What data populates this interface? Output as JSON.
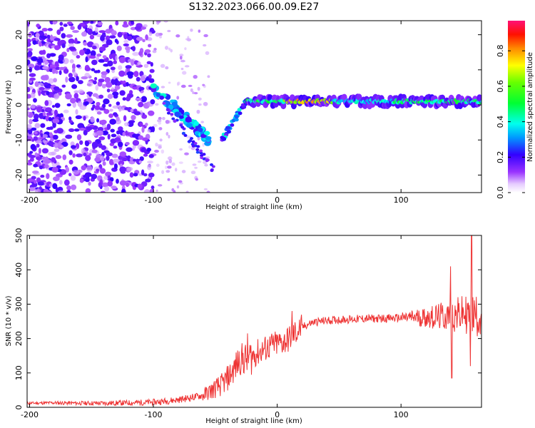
{
  "chart_data": [
    {
      "type": "heatmap",
      "title": "S132.2023.066.00.09.E27",
      "xlabel": "Height of straight line (km)",
      "ylabel": "Frequency (Hz)",
      "xlim": [
        -202,
        165
      ],
      "ylim": [
        -25,
        24
      ],
      "x_ticks": [
        -200,
        -100,
        0,
        100
      ],
      "y_ticks": [
        20,
        10,
        0,
        -10,
        -20
      ],
      "colorbar": {
        "label": "Normalized spectral amplitude",
        "range": [
          0,
          0.97
        ],
        "ticks": [
          "0.0",
          "0.2",
          "0.4",
          "0.6",
          "0.8"
        ],
        "colormap": "gist_ncar-like (white-violet-blue-cyan-green-yellow-red-pink)"
      },
      "features": [
        {
          "x": [
            -202,
            -100
          ],
          "y": [
            -25,
            24
          ],
          "description": "scattered noise, amplitude ~0.1-0.2"
        },
        {
          "x": [
            -100,
            -60
          ],
          "y": [
            5,
            -10
          ],
          "description": "descending track, amplitude ~0.3-0.45"
        },
        {
          "x": [
            -45,
            -30
          ],
          "y": [
            -10,
            0
          ],
          "description": "rising track"
        },
        {
          "x": [
            -25,
            165
          ],
          "y": [
            1,
            1
          ],
          "description": "steady band near 1 Hz, amplitude ~0.5-0.9"
        }
      ]
    },
    {
      "type": "line",
      "xlabel": "Height of straight line (km)",
      "ylabel": "SNR (10 * v/v)",
      "xlim": [
        -202,
        165
      ],
      "ylim": [
        0,
        500
      ],
      "x_ticks": [
        -200,
        -100,
        0,
        100
      ],
      "y_ticks": [
        0,
        100,
        200,
        300,
        400,
        500
      ],
      "color": "#ee3333",
      "series": [
        {
          "x": [
            -202,
            -180,
            -160,
            -140,
            -120,
            -100,
            -90,
            -80,
            -70,
            -60,
            -55,
            -50,
            -45,
            -40,
            -35,
            -30,
            -25,
            -20,
            -15,
            -10,
            -5,
            0,
            5,
            10,
            15,
            20,
            25,
            30,
            40,
            50,
            60,
            70,
            80,
            90,
            100,
            110,
            120,
            130,
            140,
            145,
            150,
            155,
            160,
            165
          ],
          "y": [
            12,
            13,
            12,
            12,
            13,
            15,
            18,
            22,
            28,
            35,
            45,
            55,
            65,
            85,
            110,
            140,
            140,
            150,
            160,
            170,
            178,
            185,
            190,
            200,
            218,
            232,
            242,
            248,
            252,
            255,
            256,
            258,
            258,
            259,
            260,
            262,
            262,
            263,
            265,
            268,
            270,
            270,
            268,
            268
          ],
          "spikes": [
            {
              "x": -24,
              "y": 215
            },
            {
              "x": 12,
              "y": 280
            },
            {
              "x": 140,
              "y": 410
            },
            {
              "x": 141,
              "y": 85
            },
            {
              "x": 157,
              "y": 500
            },
            {
              "x": 156,
              "y": 120
            }
          ]
        }
      ]
    }
  ]
}
